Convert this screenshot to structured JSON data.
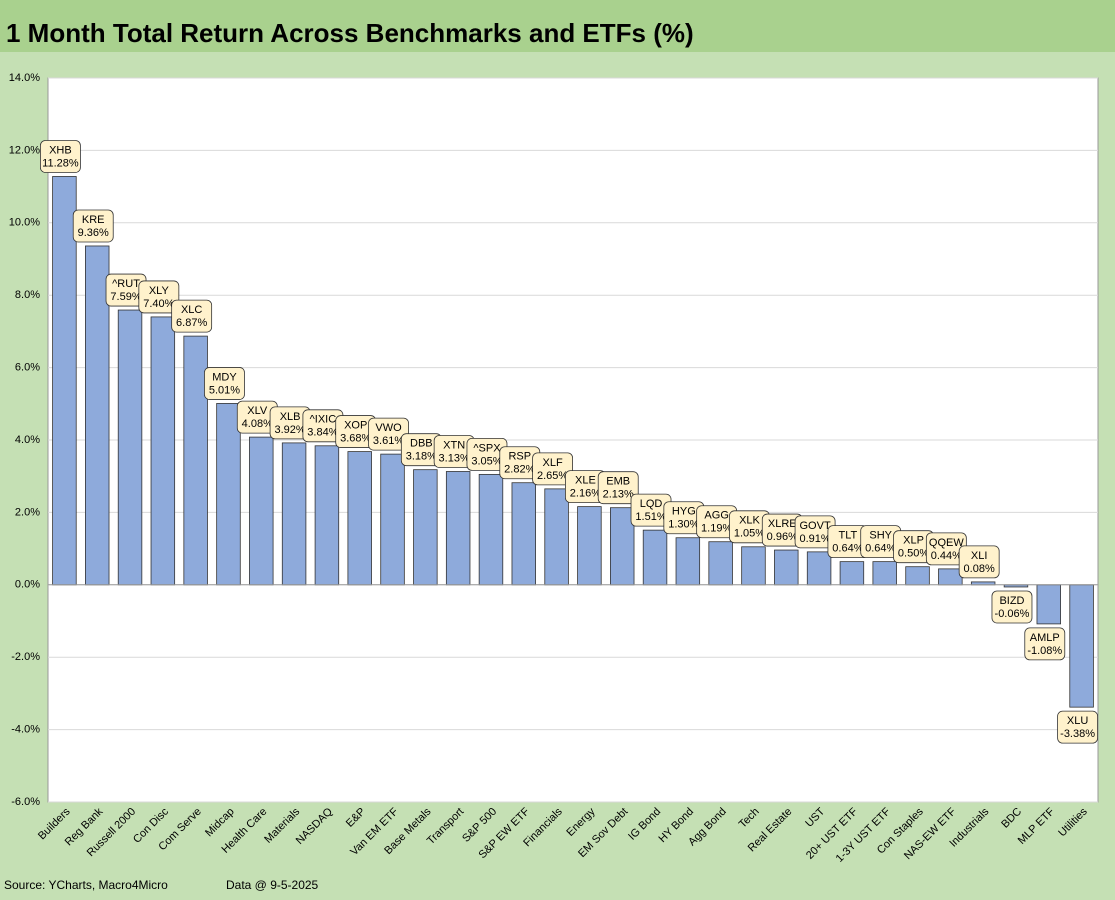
{
  "chart_data": {
    "type": "bar",
    "title": "1 Month Total Return Across Benchmarks and ETFs (%)",
    "source": "Source: YCharts, Macro4Micro",
    "data_date": "Data @ 9-5-2025",
    "categories": [
      "Builders",
      "Reg Bank",
      "Russell 2000",
      "Con Disc",
      "Com Serve",
      "Midcap",
      "Health Care",
      "Materials",
      "NASDAQ",
      "E&P",
      "Van EM ETF",
      "Base Metals",
      "Transport",
      "S&P 500",
      "S&P EW ETF",
      "Financials",
      "Energy",
      "EM Sov Debt",
      "IG Bond",
      "HY Bond",
      "Agg Bond",
      "Tech",
      "Real Estate",
      "UST",
      "20+ UST ETF",
      "1-3Y UST ETF",
      "Con Staples",
      "NAS-EW ETF",
      "Industrials",
      "BDC",
      "MLP ETF",
      "Utilities"
    ],
    "point_labels": [
      "XHB",
      "KRE",
      "^RUT",
      "XLY",
      "XLC",
      "MDY",
      "XLV",
      "XLB",
      "^IXIC",
      "XOP",
      "VWO",
      "DBB",
      "XTN",
      "^SPX",
      "RSP",
      "XLF",
      "XLE",
      "EMB",
      "LQD",
      "HYG",
      "AGG",
      "XLK",
      "XLRE",
      "GOVT",
      "TLT",
      "SHY",
      "XLP",
      "QQEW",
      "XLI",
      "BIZD",
      "AMLP",
      "XLU"
    ],
    "values": [
      11.28,
      9.36,
      7.59,
      7.4,
      6.87,
      5.01,
      4.08,
      3.92,
      3.84,
      3.68,
      3.61,
      3.18,
      3.13,
      3.05,
      2.82,
      2.65,
      2.16,
      2.13,
      1.51,
      1.3,
      1.19,
      1.05,
      0.96,
      0.91,
      0.64,
      0.64,
      0.5,
      0.44,
      0.08,
      -0.06,
      -1.08,
      -3.38
    ],
    "value_labels": [
      "11.28%",
      "9.36%",
      "7.59%",
      "7.40%",
      "6.87%",
      "5.01%",
      "4.08%",
      "3.92%",
      "3.84%",
      "3.68%",
      "3.61%",
      "3.18%",
      "3.13%",
      "3.05%",
      "2.82%",
      "2.65%",
      "2.16%",
      "2.13%",
      "1.51%",
      "1.30%",
      "1.19%",
      "1.05%",
      "0.96%",
      "0.91%",
      "0.64%",
      "0.64%",
      "0.50%",
      "0.44%",
      "0.08%",
      "-0.06%",
      "-1.08%",
      "-3.38%"
    ],
    "color": "#8eaadb",
    "ylim": [
      -6,
      14
    ],
    "yticks": [
      {
        "value": -6,
        "label": "-6.0%"
      },
      {
        "value": -4,
        "label": "-4.0%"
      },
      {
        "value": -2,
        "label": "-2.0%"
      },
      {
        "value": 0,
        "label": "0.0%"
      },
      {
        "value": 2,
        "label": "2.0%"
      },
      {
        "value": 4,
        "label": "4.0%"
      },
      {
        "value": 6,
        "label": "6.0%"
      },
      {
        "value": 8,
        "label": "8.0%"
      },
      {
        "value": 10,
        "label": "10.0%"
      },
      {
        "value": 12,
        "label": "12.0%"
      },
      {
        "value": 14,
        "label": "14.0%"
      }
    ],
    "grid": true
  }
}
